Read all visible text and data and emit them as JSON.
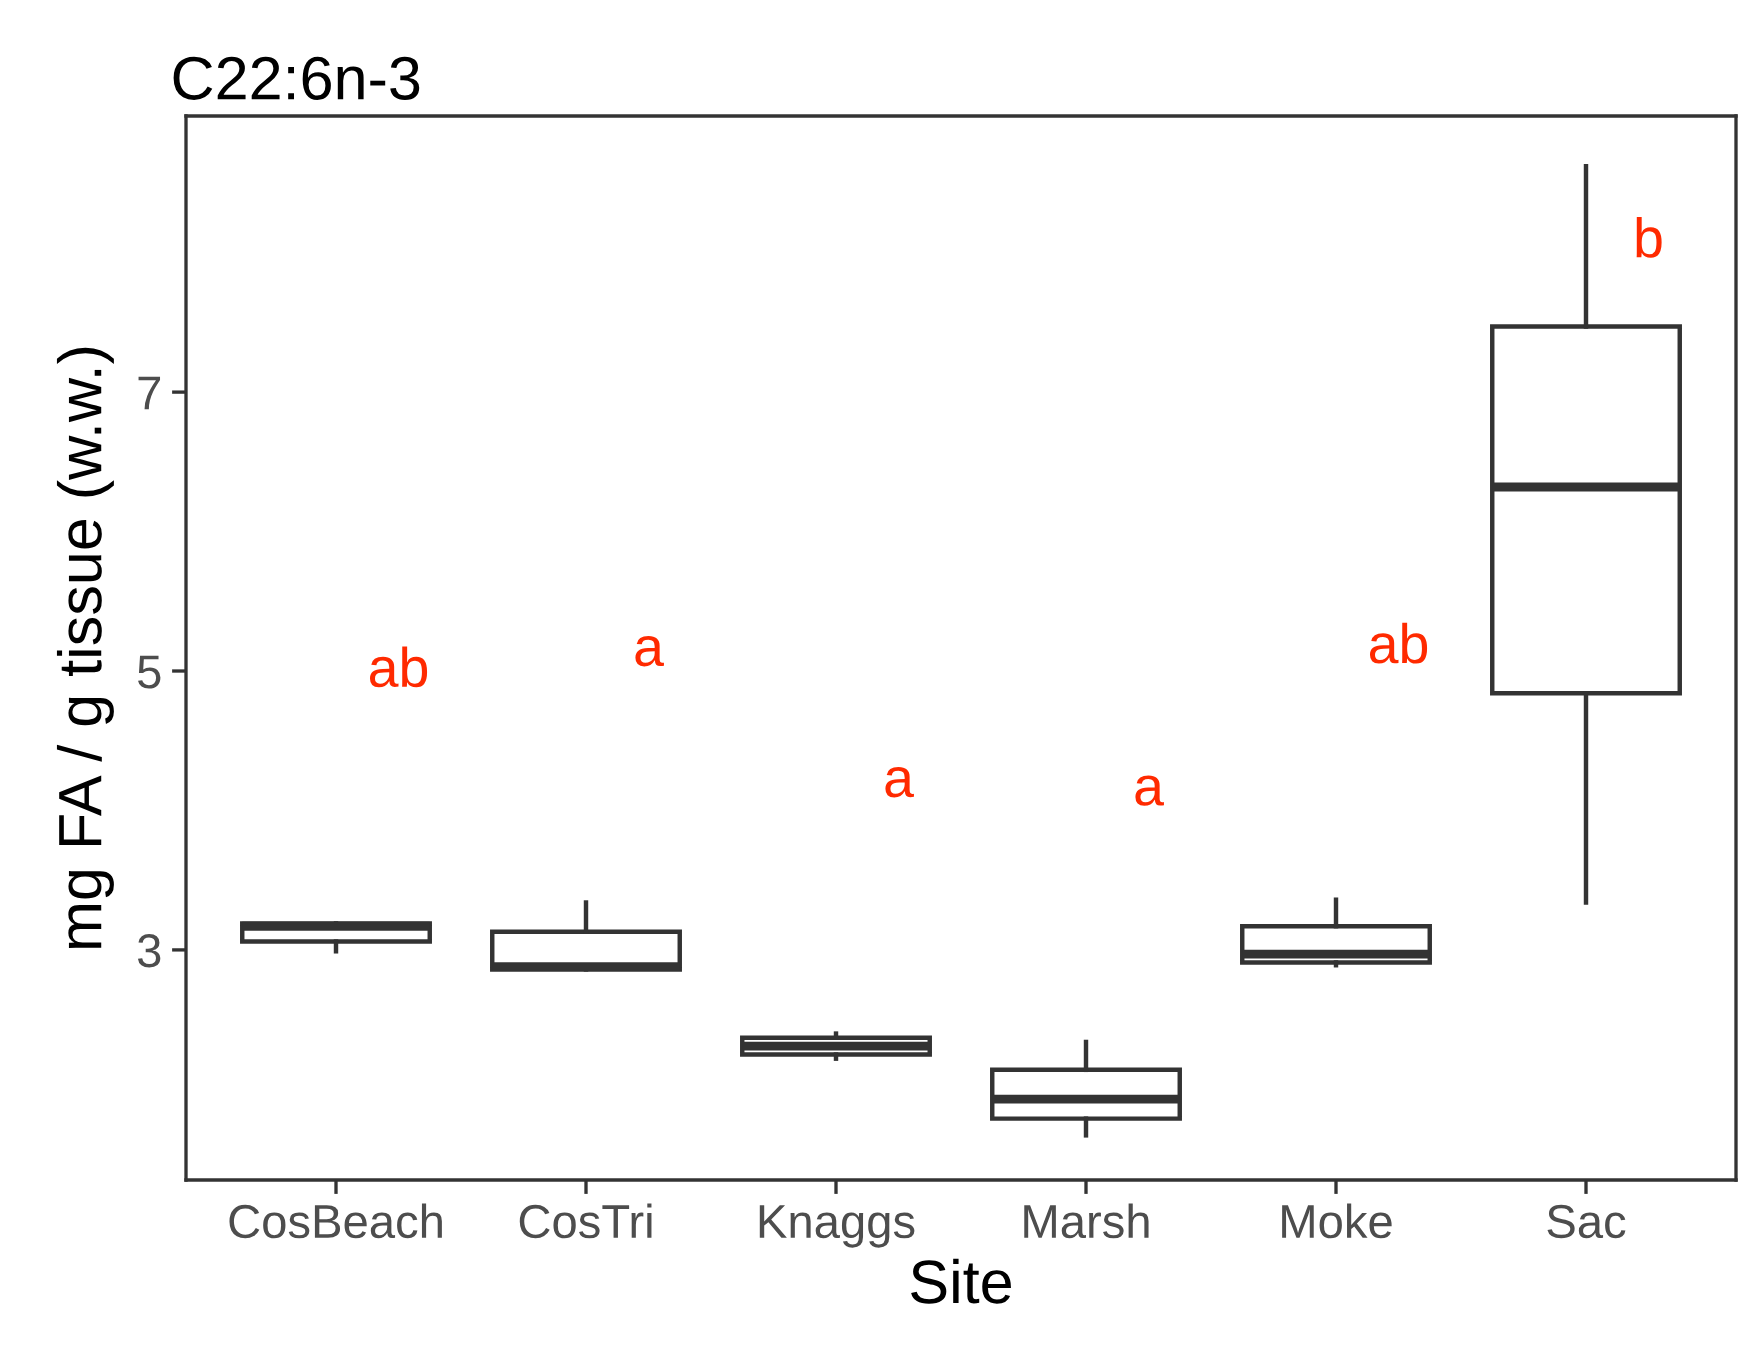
{
  "chart_data": {
    "type": "box",
    "title": "C22:6n-3",
    "xlabel": "Site",
    "ylabel": "mg FA / g tissue (w.w.)",
    "categories": [
      "CosBeach",
      "CosTri",
      "Knaggs",
      "Marsh",
      "Moke",
      "Sac"
    ],
    "boxes": [
      {
        "low": 2.99,
        "q1": 3.06,
        "median": 3.17,
        "q3": 3.19,
        "high": 3.19
      },
      {
        "low": 2.86,
        "q1": 2.86,
        "median": 2.88,
        "q3": 3.13,
        "high": 3.34
      },
      {
        "low": 2.22,
        "q1": 2.25,
        "median": 2.31,
        "q3": 2.37,
        "high": 2.4
      },
      {
        "low": 1.67,
        "q1": 1.79,
        "median": 1.93,
        "q3": 2.14,
        "high": 2.34
      },
      {
        "low": 2.89,
        "q1": 2.91,
        "median": 2.97,
        "q3": 3.17,
        "high": 3.36
      },
      {
        "low": 3.34,
        "q1": 4.84,
        "median": 6.32,
        "q3": 7.47,
        "high": 8.62
      }
    ],
    "ylim": [
      1.35,
      8.98
    ],
    "yticks": [
      3,
      5,
      7
    ],
    "grid": false,
    "annotations": [
      "ab",
      "a",
      "a",
      "a",
      "ab",
      "b"
    ]
  }
}
